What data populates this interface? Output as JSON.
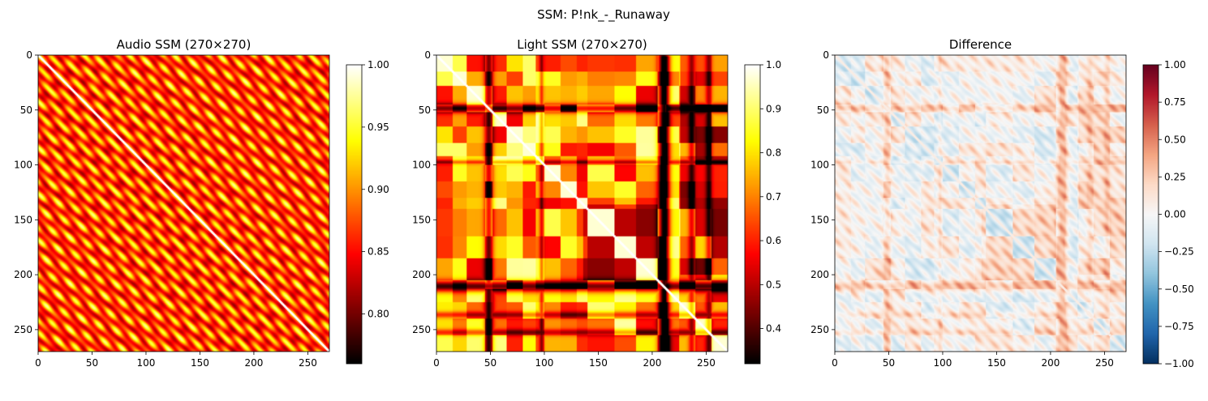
{
  "figure": {
    "suptitle": "SSM: P!nk_-_Runaway"
  },
  "chart_data": [
    {
      "type": "heatmap",
      "title": "Audio SSM (270×270)",
      "size": 270,
      "colormap": "hot",
      "xlim": [
        0,
        270
      ],
      "ylim": [
        270,
        0
      ],
      "x_ticks": [
        0,
        50,
        100,
        150,
        200,
        250
      ],
      "y_ticks": [
        0,
        50,
        100,
        150,
        200,
        250
      ],
      "colorbar": {
        "min": 0.76,
        "max": 1.0,
        "ticks": [
          0.8,
          0.85,
          0.9,
          0.95,
          1.0
        ],
        "tick_labels": [
          "0.80",
          "0.85",
          "0.90",
          "0.95",
          "1.00"
        ]
      }
    },
    {
      "type": "heatmap",
      "title": "Light SSM (270×270)",
      "size": 270,
      "colormap": "hot",
      "xlim": [
        0,
        270
      ],
      "ylim": [
        270,
        0
      ],
      "x_ticks": [
        0,
        50,
        100,
        150,
        200,
        250
      ],
      "y_ticks": [
        0,
        50,
        100,
        150,
        200,
        250
      ],
      "colorbar": {
        "min": 0.32,
        "max": 1.0,
        "ticks": [
          0.4,
          0.5,
          0.6,
          0.7,
          0.8,
          0.9,
          1.0
        ],
        "tick_labels": [
          "0.4",
          "0.5",
          "0.6",
          "0.7",
          "0.8",
          "0.9",
          "1.0"
        ]
      }
    },
    {
      "type": "heatmap",
      "title": "Difference",
      "size": 270,
      "colormap": "RdBu_r",
      "xlim": [
        0,
        270
      ],
      "ylim": [
        270,
        0
      ],
      "x_ticks": [
        0,
        50,
        100,
        150,
        200,
        250
      ],
      "y_ticks": [
        0,
        50,
        100,
        150,
        200,
        250
      ],
      "colorbar": {
        "min": -1.0,
        "max": 1.0,
        "ticks": [
          -1.0,
          -0.75,
          -0.5,
          -0.25,
          0.0,
          0.25,
          0.5,
          0.75,
          1.0
        ],
        "tick_labels": [
          "−1.00",
          "−0.75",
          "−0.50",
          "−0.25",
          "0.00",
          "0.25",
          "0.50",
          "0.75",
          "1.00"
        ]
      }
    }
  ]
}
